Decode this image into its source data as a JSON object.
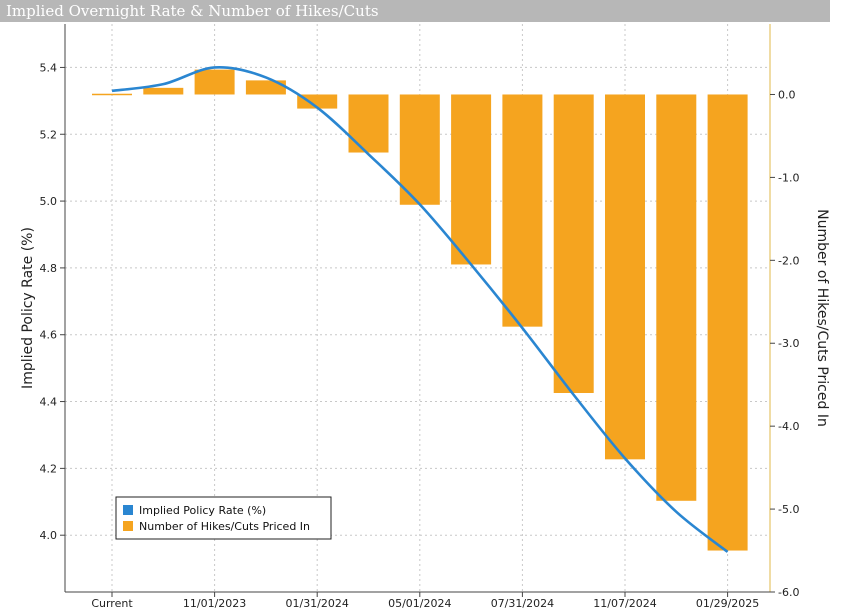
{
  "title": "Implied Overnight Rate & Number of Hikes/Cuts",
  "chart_data": {
    "type": "bar",
    "title": "Implied Overnight Rate & Number of Hikes/Cuts",
    "x_tick_labels": [
      "Current",
      "11/01/2023",
      "01/31/2024",
      "05/01/2024",
      "07/31/2024",
      "11/07/2024",
      "01/29/2025"
    ],
    "left_axis": {
      "label": "Implied Policy Rate (%)",
      "range": [
        3.83,
        5.53
      ],
      "ticks": [
        4.0,
        4.2,
        4.4,
        4.6,
        4.8,
        5.0,
        5.2,
        5.4
      ]
    },
    "right_axis": {
      "label": "Number of Hikes/Cuts Priced In",
      "range": [
        -6.0,
        0.85
      ],
      "ticks": [
        0.0,
        -1.0,
        -2.0,
        -3.0,
        -4.0,
        -5.0,
        -6.0
      ]
    },
    "series": [
      {
        "name": "Implied Policy Rate (%)",
        "type": "line",
        "axis": "left",
        "color": "#2a86d1",
        "values": [
          5.33,
          5.35,
          5.4,
          5.37,
          5.28,
          5.14,
          4.99,
          4.81,
          4.62,
          4.42,
          4.23,
          4.07,
          3.95
        ]
      },
      {
        "name": "Number of Hikes/Cuts Priced In",
        "type": "bar",
        "axis": "right",
        "color": "#f5a41f",
        "values": [
          0.0,
          0.08,
          0.3,
          0.17,
          -0.17,
          -0.7,
          -1.33,
          -2.05,
          -2.8,
          -3.6,
          -4.4,
          -4.9,
          -5.5
        ]
      }
    ],
    "legend": {
      "position": "bottom-left",
      "entries": [
        "Implied Policy Rate (%)",
        "Number of Hikes/Cuts Priced In"
      ]
    },
    "grid": true
  }
}
